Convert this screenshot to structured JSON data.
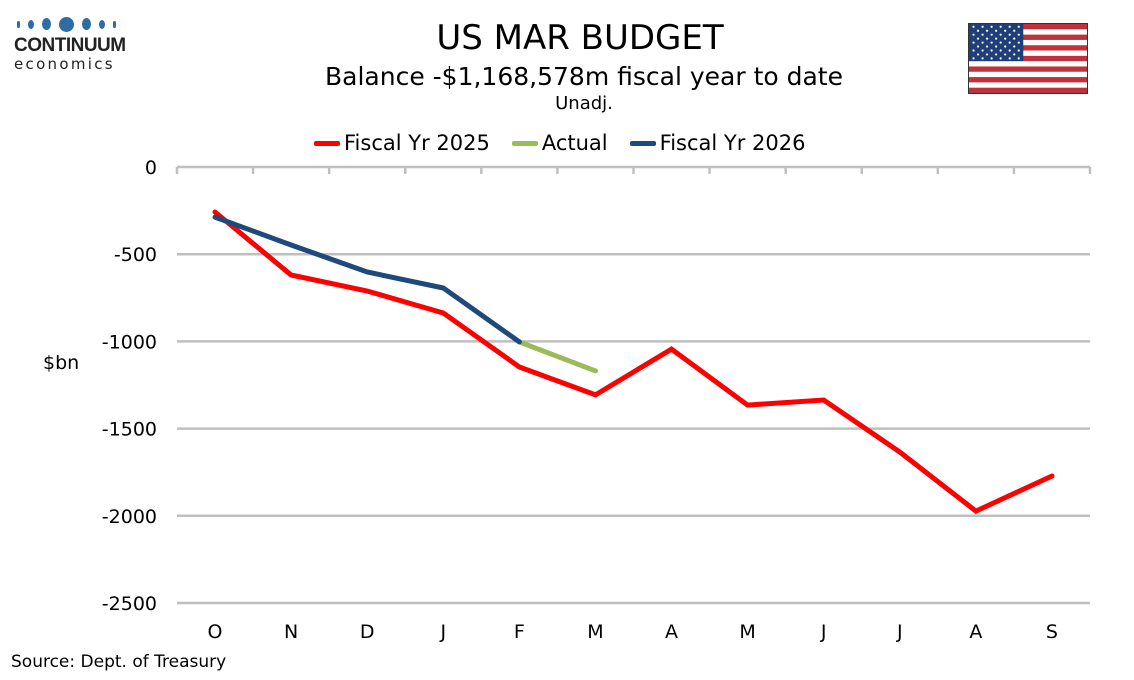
{
  "logo": {
    "name": "CONTINUUM",
    "sub": "economics"
  },
  "flag": {
    "icon": "us-flag-icon",
    "colors": {
      "blue": "#1f3f7a",
      "red": "#c0313a",
      "white": "#ffffff"
    }
  },
  "source": "Source: Dept. of Treasury",
  "chart_data": {
    "type": "line",
    "title": "US MAR BUDGET",
    "subtitle": "Balance  -$1,168,578m  fiscal year to date",
    "note": "Unadj.",
    "xlabel": "",
    "ylabel": "$bn",
    "ylim": [
      -2500,
      0
    ],
    "yticks": [
      0,
      -500,
      -1000,
      -1500,
      -2000,
      -2500
    ],
    "ytick_labels": [
      "0",
      "-500",
      "-1000",
      "-1500",
      "-2000",
      "-2500"
    ],
    "categories": [
      "O",
      "N",
      "D",
      "J",
      "F",
      "M",
      "A",
      "M",
      "J",
      "J",
      "A",
      "S"
    ],
    "grid": "horizontal",
    "legend_position": "top-center",
    "series": [
      {
        "name": "Fiscal Yr 2025",
        "color": "#ff0000",
        "values": [
          -258,
          -619,
          -711,
          -837,
          -1147,
          -1307,
          -1044,
          -1365,
          -1336,
          -1634,
          -1973,
          -1772
        ]
      },
      {
        "name": "Actual",
        "color": "#9bbb59",
        "values": [
          null,
          null,
          null,
          null,
          -1003,
          -1169,
          null,
          null,
          null,
          null,
          null,
          null
        ]
      },
      {
        "name": "Fiscal Yr 2026",
        "color": "#1f497d",
        "values": [
          -287,
          -447,
          -602,
          -694,
          -1003,
          null,
          null,
          null,
          null,
          null,
          null,
          null
        ]
      }
    ]
  }
}
